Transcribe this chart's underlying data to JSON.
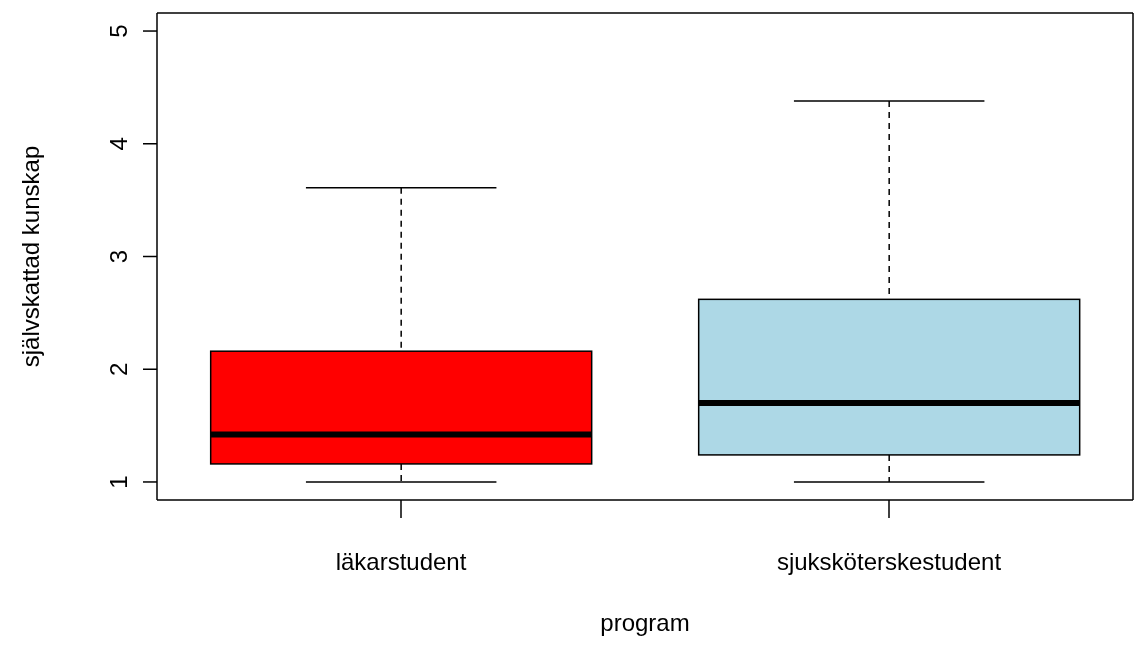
{
  "chart_data": {
    "type": "box",
    "xlabel": "program",
    "ylabel": "självskattad kunskap",
    "categories": [
      "läkarstudent",
      "sjuksköterskestudent"
    ],
    "colors": [
      "#ff0000",
      "#add8e6"
    ],
    "boxes": [
      {
        "low": 1,
        "q1": 1.16,
        "median": 1.42,
        "q3": 2.16,
        "high": 3.61
      },
      {
        "low": 1,
        "q1": 1.24,
        "median": 1.7,
        "q3": 2.62,
        "high": 4.38
      }
    ],
    "ylim": [
      0.84,
      5.16
    ],
    "yticks": [
      1,
      2,
      3,
      4,
      5
    ]
  }
}
